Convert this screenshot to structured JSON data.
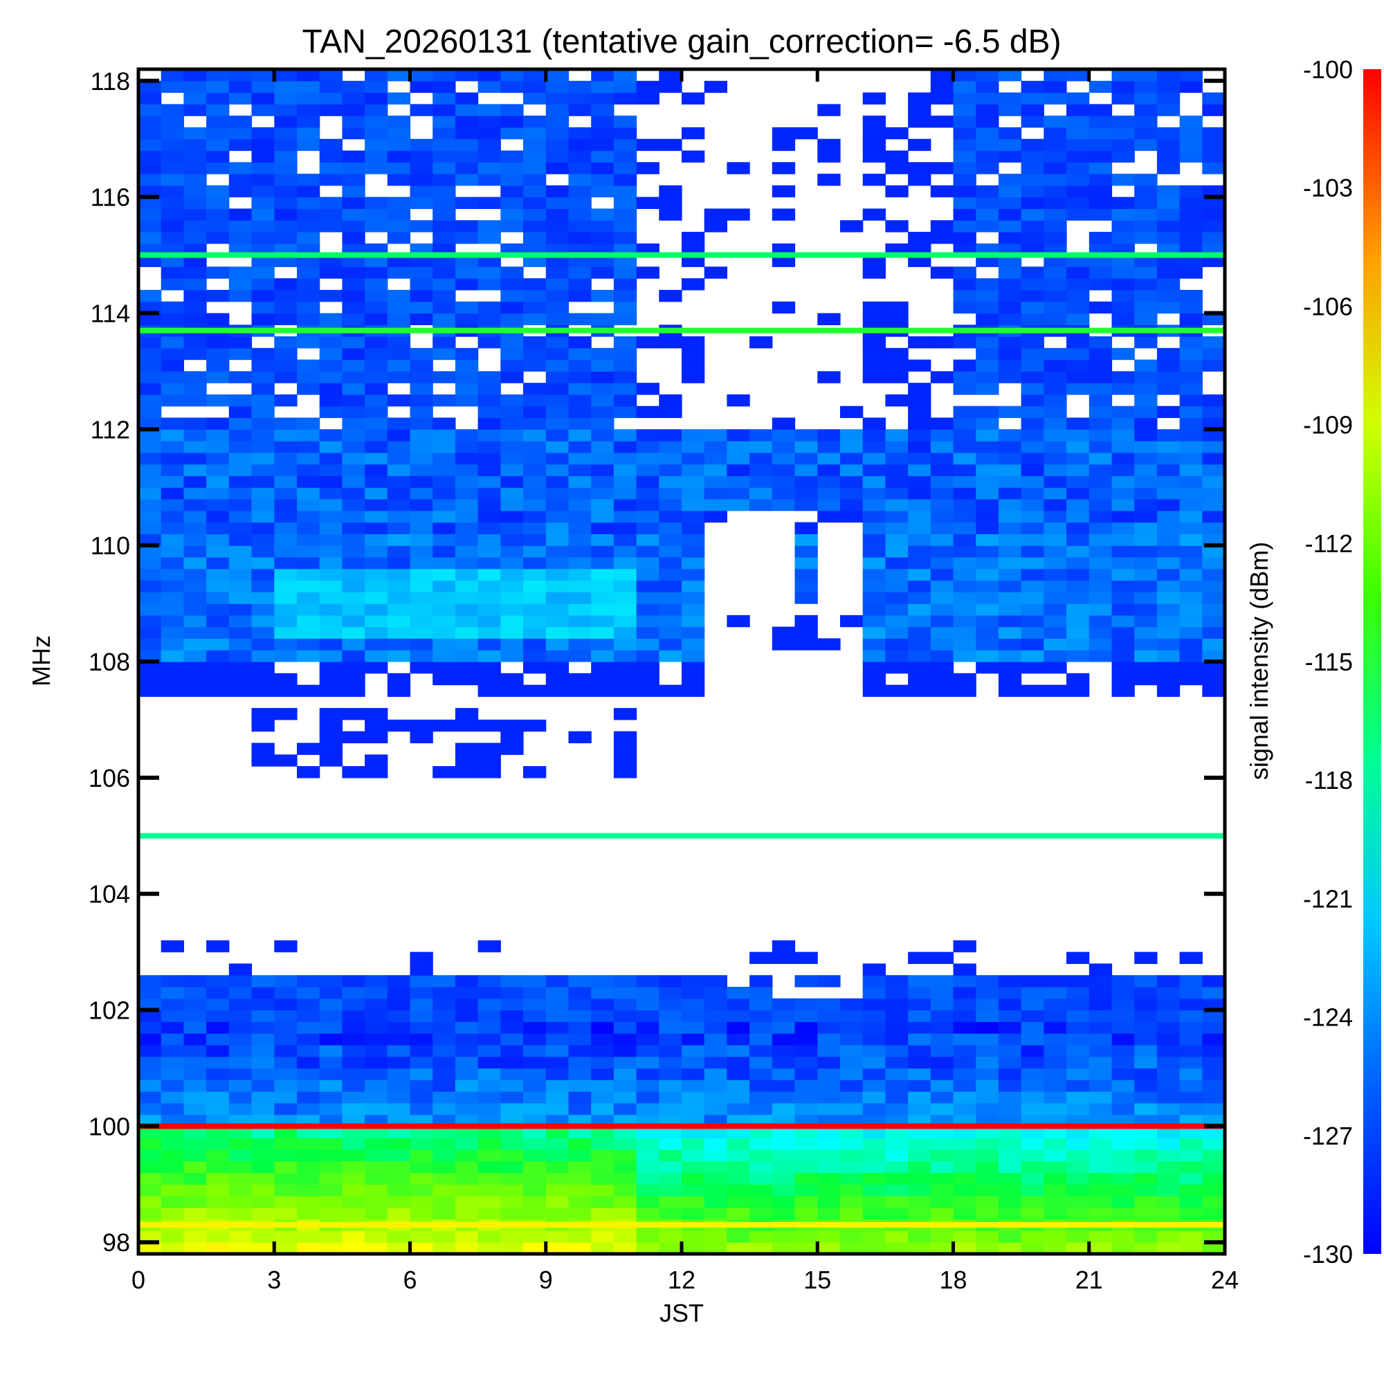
{
  "chart_data": {
    "type": "heatmap",
    "title": "TAN_20260131 (tentative gain_correction= -6.5 dB)",
    "xlabel": "JST",
    "ylabel": "MHz",
    "xlim": [
      0,
      24
    ],
    "ylim": [
      97.8,
      118.2
    ],
    "x_ticks": [
      "0",
      "3",
      "6",
      "9",
      "12",
      "15",
      "18",
      "21",
      "24"
    ],
    "y_ticks": [
      "98",
      "100",
      "102",
      "104",
      "106",
      "108",
      "110",
      "112",
      "114",
      "116",
      "118"
    ],
    "colorbar": {
      "label": "signal intensity (dBm)",
      "range": [
        -130,
        -100
      ],
      "ticks": [
        "-100",
        "-103",
        "-106",
        "-109",
        "-112",
        "-115",
        "-118",
        "-121",
        "-124",
        "-127",
        "-130"
      ],
      "colormap": [
        "#0000ff",
        "#00a0ff",
        "#00ffff",
        "#00ff40",
        "#80ff00",
        "#ffff00",
        "#ffa000",
        "#ff0000"
      ]
    },
    "band_features": [
      {
        "name": "band 115.0 MHz line",
        "freq": 115.0,
        "dbm": -118
      },
      {
        "name": "band 113.7 MHz line",
        "freq": 113.7,
        "dbm": -116
      },
      {
        "name": "band 105.0 MHz line",
        "freq": 105.0,
        "dbm": -119
      },
      {
        "name": "band 100.0 MHz carrier",
        "freq": 100.0,
        "dbm": -100
      },
      {
        "name": "band 98.3 MHz",
        "freq": 98.3,
        "dbm": -108
      }
    ],
    "annotations": {
      "daytime_gap_start_jst": 11,
      "daytime_gap_end_jst": 16
    }
  }
}
